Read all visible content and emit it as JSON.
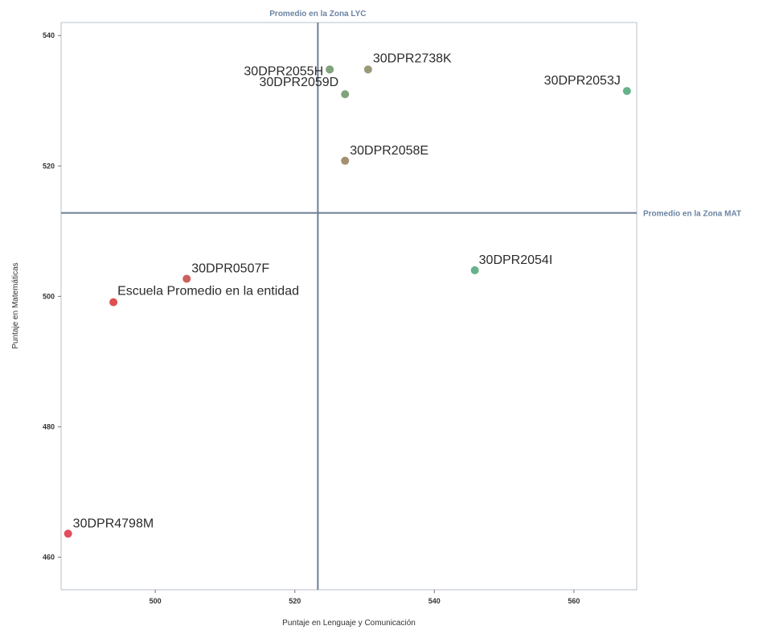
{
  "chart_data": {
    "type": "scatter",
    "title": "",
    "xlabel": "Puntaje en Lenguaje y Comunicación",
    "ylabel": "Puntaje en Matemáticas",
    "xlim": [
      486.5,
      569
    ],
    "ylim": [
      455,
      542
    ],
    "x_ticks": [
      500,
      520,
      540,
      560
    ],
    "y_ticks": [
      460,
      480,
      500,
      520,
      540
    ],
    "grid": false,
    "reference_lines": [
      {
        "orientation": "vertical",
        "value": 523.3,
        "label": "Promedio en la Zona LYC"
      },
      {
        "orientation": "horizontal",
        "value": 512.8,
        "label": "Promedio en la Zona MAT"
      }
    ],
    "points": [
      {
        "label": "30DPR2055H",
        "x": 525,
        "y": 534.8,
        "color": "#7fa37a"
      },
      {
        "label": "30DPR2738K",
        "x": 530.5,
        "y": 534.8,
        "color": "#9a9a78"
      },
      {
        "label": "30DPR2059D",
        "x": 527.2,
        "y": 531,
        "color": "#7fa37a"
      },
      {
        "label": "30DPR2053J",
        "x": 567.6,
        "y": 531.5,
        "color": "#66b38a"
      },
      {
        "label": "30DPR2058E",
        "x": 527.2,
        "y": 520.8,
        "color": "#a39070"
      },
      {
        "label": "30DPR2054I",
        "x": 545.8,
        "y": 504,
        "color": "#66b38a"
      },
      {
        "label": "30DPR0507F",
        "x": 504.5,
        "y": 502.7,
        "color": "#cc6060"
      },
      {
        "label": "Escuela Promedio en la entidad",
        "x": 494,
        "y": 499.1,
        "color": "#e05050"
      },
      {
        "label": "30DPR4798M",
        "x": 487.5,
        "y": 463.6,
        "color": "#e04f5f"
      }
    ]
  }
}
